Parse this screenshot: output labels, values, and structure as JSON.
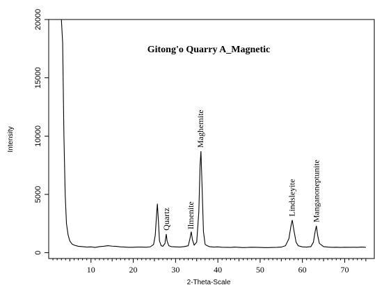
{
  "chart_data": {
    "type": "line",
    "title": "Gitong'o Quarry A_Magnetic",
    "xlabel": "2-Theta-Scale",
    "ylabel": "Intensity",
    "xlim": [
      0,
      77
    ],
    "ylim": [
      -500,
      20000
    ],
    "x_ticks": [
      10,
      20,
      30,
      40,
      50,
      60,
      70
    ],
    "y_ticks": [
      0,
      5000,
      10000,
      15000,
      20000
    ],
    "grid": false,
    "line_color": "#000000",
    "series": [
      {
        "points": [
          [
            3.0,
            20000
          ],
          [
            3.3,
            18000
          ],
          [
            3.6,
            10000
          ],
          [
            3.9,
            5000
          ],
          [
            4.2,
            2500
          ],
          [
            4.6,
            1500
          ],
          [
            5.0,
            1000
          ],
          [
            5.5,
            750
          ],
          [
            6.0,
            650
          ],
          [
            7.0,
            550
          ],
          [
            8.0,
            520
          ],
          [
            9.0,
            480
          ],
          [
            10.0,
            500
          ],
          [
            11.0,
            450
          ],
          [
            12.0,
            520
          ],
          [
            13.0,
            550
          ],
          [
            14.0,
            600
          ],
          [
            15.0,
            560
          ],
          [
            16.0,
            540
          ],
          [
            17.0,
            500
          ],
          [
            18.0,
            480
          ],
          [
            19.0,
            460
          ],
          [
            20.0,
            470
          ],
          [
            21.0,
            480
          ],
          [
            22.0,
            480
          ],
          [
            23.0,
            470
          ],
          [
            24.0,
            500
          ],
          [
            24.8,
            700
          ],
          [
            25.2,
            1500
          ],
          [
            25.5,
            3200
          ],
          [
            25.7,
            4200
          ],
          [
            25.9,
            3000
          ],
          [
            26.2,
            1000
          ],
          [
            26.6,
            600
          ],
          [
            27.0,
            550
          ],
          [
            27.5,
            800
          ],
          [
            27.8,
            1600
          ],
          [
            28.0,
            1000
          ],
          [
            28.4,
            600
          ],
          [
            29.0,
            520
          ],
          [
            30.0,
            500
          ],
          [
            31.0,
            480
          ],
          [
            32.0,
            520
          ],
          [
            33.0,
            600
          ],
          [
            33.4,
            1200
          ],
          [
            33.7,
            1800
          ],
          [
            34.0,
            1100
          ],
          [
            34.4,
            650
          ],
          [
            35.0,
            900
          ],
          [
            35.5,
            3500
          ],
          [
            35.8,
            7500
          ],
          [
            36.0,
            8700
          ],
          [
            36.2,
            6500
          ],
          [
            36.6,
            1800
          ],
          [
            37.0,
            700
          ],
          [
            37.5,
            600
          ],
          [
            38.0,
            520
          ],
          [
            39.0,
            480
          ],
          [
            40.0,
            500
          ],
          [
            41.0,
            470
          ],
          [
            42.0,
            460
          ],
          [
            43.0,
            450
          ],
          [
            44.0,
            480
          ],
          [
            45.0,
            460
          ],
          [
            46.0,
            440
          ],
          [
            47.0,
            450
          ],
          [
            48.0,
            470
          ],
          [
            49.0,
            460
          ],
          [
            50.0,
            450
          ],
          [
            51.0,
            440
          ],
          [
            52.0,
            440
          ],
          [
            53.0,
            450
          ],
          [
            54.0,
            460
          ],
          [
            55.0,
            480
          ],
          [
            56.0,
            600
          ],
          [
            56.8,
            1200
          ],
          [
            57.3,
            2300
          ],
          [
            57.6,
            2800
          ],
          [
            58.0,
            1900
          ],
          [
            58.5,
            900
          ],
          [
            59.0,
            600
          ],
          [
            60.0,
            500
          ],
          [
            61.0,
            480
          ],
          [
            62.0,
            520
          ],
          [
            62.6,
            900
          ],
          [
            63.0,
            1800
          ],
          [
            63.3,
            2300
          ],
          [
            63.6,
            1500
          ],
          [
            64.0,
            800
          ],
          [
            65.0,
            520
          ],
          [
            66.0,
            480
          ],
          [
            67.0,
            460
          ],
          [
            68.0,
            470
          ],
          [
            69.0,
            450
          ],
          [
            70.0,
            470
          ],
          [
            71.0,
            460
          ],
          [
            72.0,
            470
          ],
          [
            73.0,
            460
          ],
          [
            74.0,
            480
          ],
          [
            75.0,
            460
          ]
        ]
      }
    ],
    "annotations": [
      {
        "text": "Quartz",
        "x": 27.8,
        "y": 1900
      },
      {
        "text": "Ilmenite",
        "x": 33.6,
        "y": 2000
      },
      {
        "text": "Maghemite",
        "x": 35.9,
        "y": 9000
      },
      {
        "text": "Lindsleyite",
        "x": 57.5,
        "y": 3100
      },
      {
        "text": "Manganoneptunite",
        "x": 63.3,
        "y": 2600
      }
    ]
  }
}
